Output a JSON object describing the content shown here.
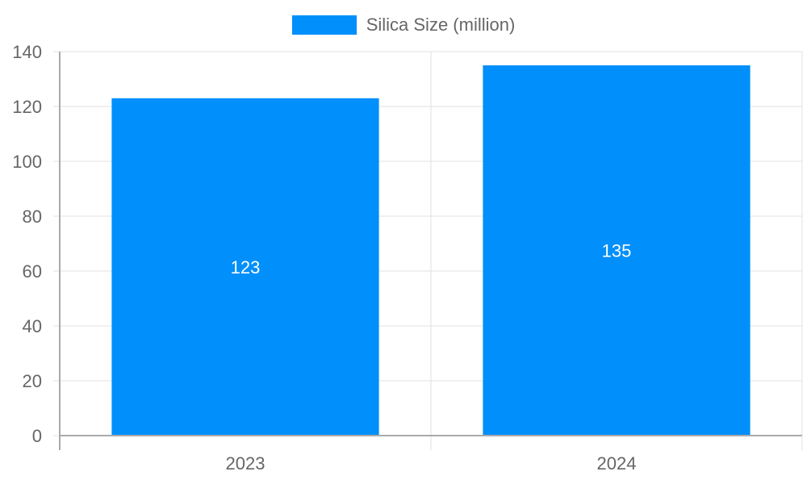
{
  "colors": {
    "bar": "#008ffb",
    "grid": "#e0e0e0",
    "axis": "#aaaaaa",
    "text": "#666666"
  },
  "legend": {
    "label": "Silica Size (million)"
  },
  "chart_data": {
    "type": "bar",
    "title": "",
    "categories": [
      "2023",
      "2024"
    ],
    "series": [
      {
        "name": "Silica Size (million)",
        "values": [
          123,
          135
        ]
      }
    ],
    "data_labels": [
      "123",
      "135"
    ],
    "xlabel": "",
    "ylabel": "",
    "ylim": [
      0,
      140
    ],
    "yticks": [
      "0",
      "20",
      "40",
      "60",
      "80",
      "100",
      "120",
      "140"
    ],
    "grid": true,
    "legend_position": "top"
  }
}
